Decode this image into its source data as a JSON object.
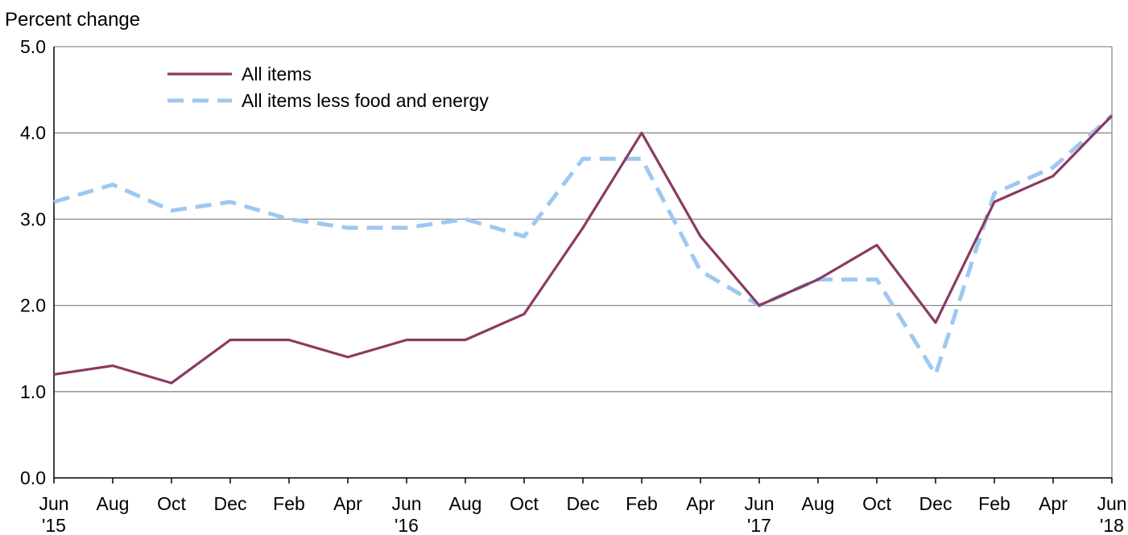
{
  "chart_data": {
    "type": "line",
    "title": "",
    "ylabel": "Percent change",
    "xlabel": "",
    "ylim": [
      0,
      5
    ],
    "yticks": [
      "0.0",
      "1.0",
      "2.0",
      "3.0",
      "4.0",
      "5.0"
    ],
    "grid": true,
    "legend_position": "top-left",
    "x_tick_labels": [
      [
        "Jun",
        "'15"
      ],
      [
        "Aug",
        ""
      ],
      [
        "Oct",
        ""
      ],
      [
        "Dec",
        ""
      ],
      [
        "Feb",
        ""
      ],
      [
        "Apr",
        ""
      ],
      [
        "Jun",
        "'16"
      ],
      [
        "Aug",
        ""
      ],
      [
        "Oct",
        ""
      ],
      [
        "Dec",
        ""
      ],
      [
        "Feb",
        ""
      ],
      [
        "Apr",
        ""
      ],
      [
        "Jun",
        "'17"
      ],
      [
        "Aug",
        ""
      ],
      [
        "Oct",
        ""
      ],
      [
        "Dec",
        ""
      ],
      [
        "Feb",
        ""
      ],
      [
        "Apr",
        ""
      ],
      [
        "Jun",
        "'18"
      ]
    ],
    "x": [
      "2015-06",
      "2015-08",
      "2015-10",
      "2015-12",
      "2016-02",
      "2016-04",
      "2016-06",
      "2016-08",
      "2016-10",
      "2016-12",
      "2017-02",
      "2017-04",
      "2017-06",
      "2017-08",
      "2017-10",
      "2017-12",
      "2018-02",
      "2018-04",
      "2018-06"
    ],
    "series": [
      {
        "name": "All items",
        "color": "#8b3a62",
        "style": "solid",
        "values": [
          1.2,
          1.3,
          1.1,
          1.6,
          1.6,
          1.4,
          1.6,
          1.6,
          1.9,
          2.9,
          4.0,
          2.8,
          2.0,
          2.3,
          2.7,
          1.8,
          3.2,
          3.5,
          4.2
        ]
      },
      {
        "name": "All items less food and energy",
        "color": "#9dc8f2",
        "style": "dashed",
        "values": [
          3.2,
          3.4,
          3.1,
          3.2,
          3.0,
          2.9,
          2.9,
          3.0,
          2.8,
          3.7,
          3.7,
          2.4,
          2.0,
          2.3,
          2.3,
          1.2,
          3.3,
          3.6,
          4.2
        ]
      }
    ]
  }
}
